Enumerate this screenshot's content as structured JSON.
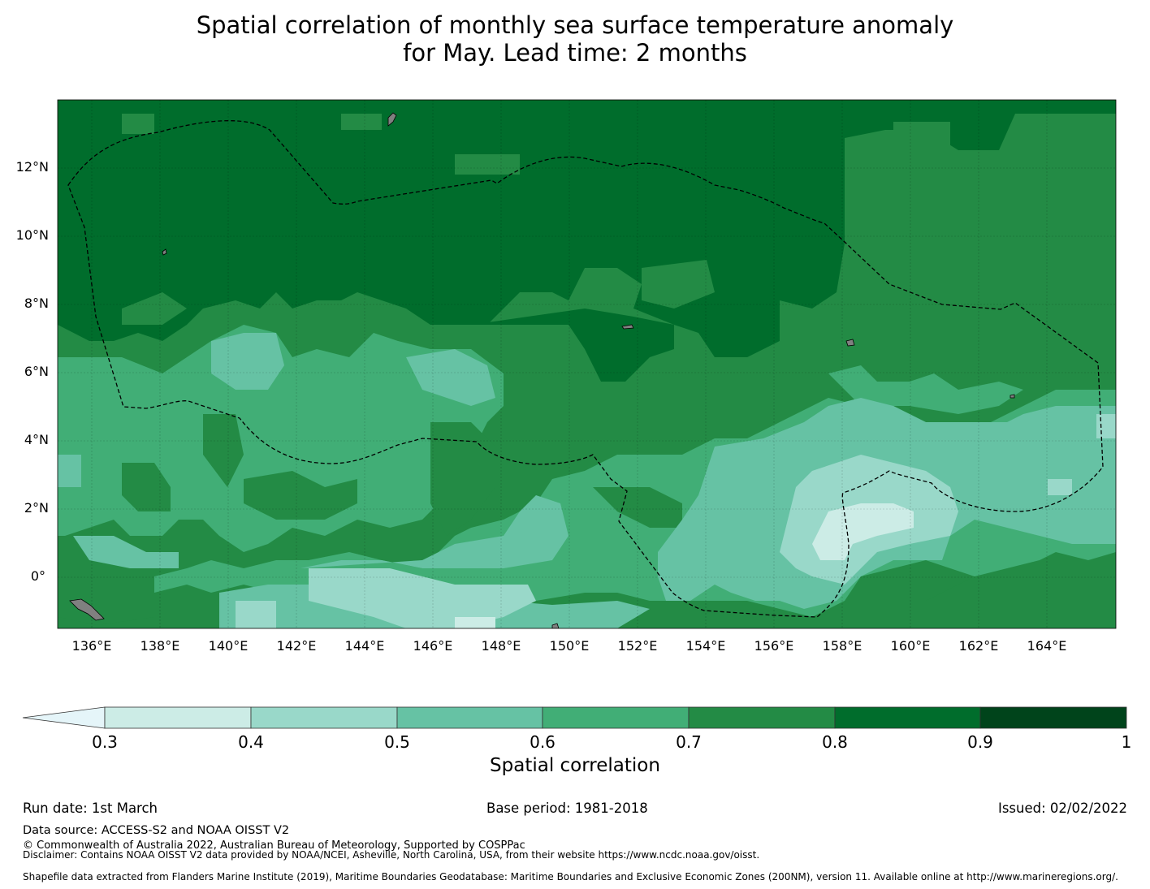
{
  "title": {
    "line1": "Spatial correlation of monthly sea surface temperature anomaly",
    "line2": "for May. Lead time: 2 months"
  },
  "map": {
    "lat_labels": [
      "12°N",
      "10°N",
      "8°N",
      "6°N",
      "4°N",
      "2°N",
      "0°"
    ],
    "lon_labels": [
      "136°E",
      "138°E",
      "140°E",
      "142°E",
      "144°E",
      "146°E",
      "148°E",
      "150°E",
      "152°E",
      "154°E",
      "156°E",
      "158°E",
      "160°E",
      "162°E",
      "164°E"
    ],
    "lon_range": [
      134.9,
      165.9
    ],
    "lat_range": [
      -1.5,
      14.0
    ],
    "land_color": "#808080",
    "boundary_style": "dashed black"
  },
  "colorbar": {
    "ticks": [
      "0.3",
      "0.4",
      "0.5",
      "0.6",
      "0.7",
      "0.8",
      "0.9",
      "1"
    ],
    "bins": [
      {
        "from": 0.3,
        "to": 0.4,
        "color": "#ccece6"
      },
      {
        "from": 0.4,
        "to": 0.5,
        "color": "#99d8c9"
      },
      {
        "from": 0.5,
        "to": 0.6,
        "color": "#66c2a4"
      },
      {
        "from": 0.6,
        "to": 0.7,
        "color": "#41ae76"
      },
      {
        "from": 0.7,
        "to": 0.8,
        "color": "#238b45"
      },
      {
        "from": 0.8,
        "to": 0.9,
        "color": "#006d2c"
      },
      {
        "from": 0.9,
        "to": 1.0,
        "color": "#00441b"
      }
    ],
    "extend_color": "#e5f5f9",
    "label": "Spatial correlation"
  },
  "footer": {
    "run_date": "Run date: 1st March",
    "base_period": "Base period: 1981-2018",
    "issued": "Issued: 02/02/2022",
    "data_source": "Data source: ACCESS-S2 and NOAA OISST V2",
    "copyright": "© Commonwealth of Australia 2022, Australian Bureau of Meteorology, Supported by COSPPac",
    "disclaimer": "Disclaimer: Contains NOAA OISST V2 data provided by NOAA/NCEI, Asheville, North Carolina, USA, from their website https://www.ncdc.noaa.gov/oisst.",
    "shapefile": "Shapefile data extracted from Flanders Marine Institute (2019), Maritime Boundaries Geodatabase: Maritime Boundaries and Exclusive Economic Zones (200NM), version 11. Available online at http://www.marineregions.org/."
  }
}
